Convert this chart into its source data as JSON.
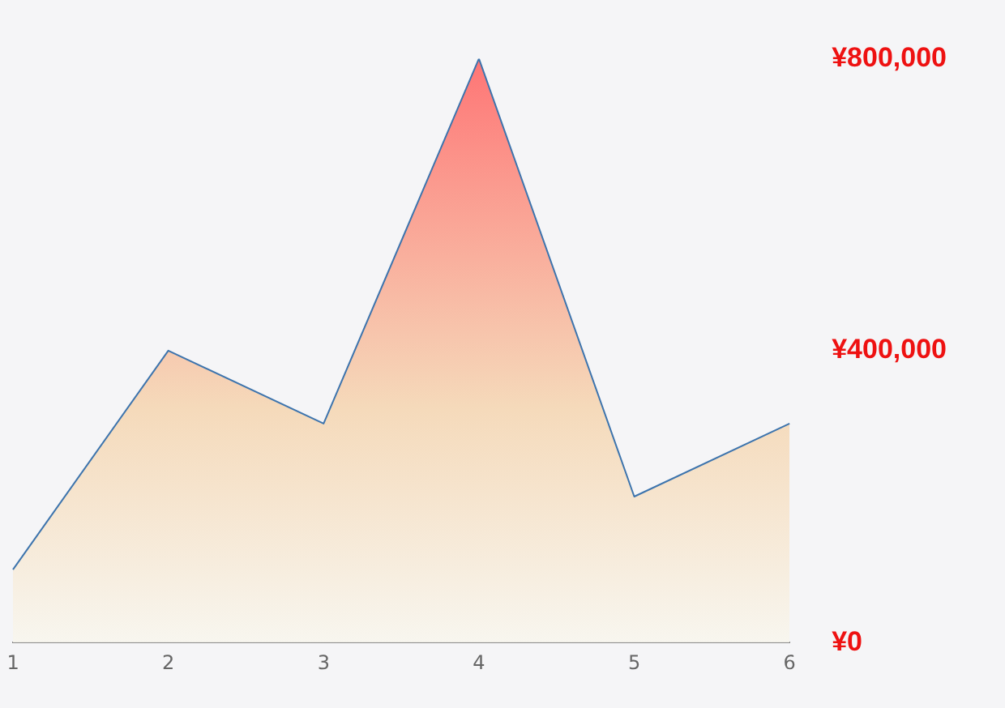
{
  "chart_data": {
    "type": "area",
    "categories": [
      "1",
      "2",
      "3",
      "4",
      "5",
      "6"
    ],
    "series": [
      {
        "color": "#3d74ad",
        "values": [
          100000,
          400000,
          300000,
          800000,
          200000,
          300000
        ]
      }
    ],
    "ylim": [
      0,
      800000
    ],
    "yticks": [
      {
        "value": 0,
        "label": "¥0"
      },
      {
        "value": 400000,
        "label": "¥400,000"
      },
      {
        "value": 800000,
        "label": "¥800,000"
      }
    ],
    "grid": false,
    "legend": false,
    "marker": "none",
    "line_style": "solid"
  }
}
